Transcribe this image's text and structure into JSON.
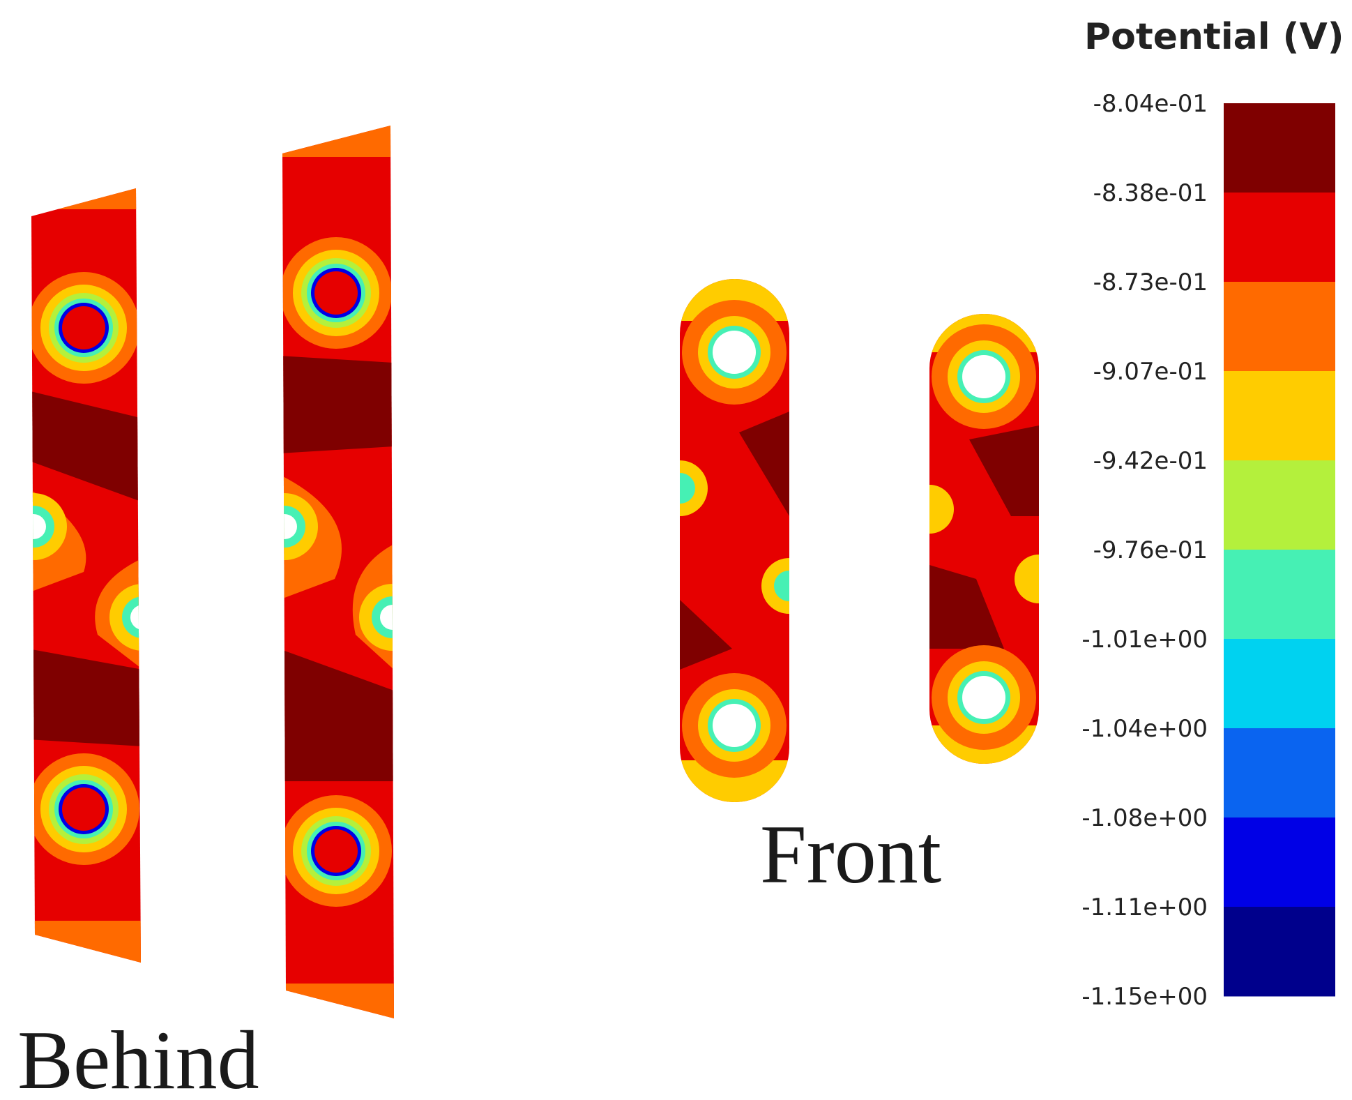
{
  "legend": {
    "title": "Potential (V)",
    "tick_labels": [
      "-8.04e-01",
      "-8.38e-01",
      "-8.73e-01",
      "-9.07e-01",
      "-9.42e-01",
      "-9.76e-01",
      "-1.01e+00",
      "-1.04e+00",
      "-1.08e+00",
      "-1.11e+00",
      "-1.15e+00"
    ],
    "colors": [
      "#7f0000",
      "#e60000",
      "#ff6a00",
      "#ffcc00",
      "#b4f03c",
      "#46f0b4",
      "#00d2f0",
      "#0a64f0",
      "#0000e6",
      "#00008c"
    ]
  },
  "labels": {
    "behind": "Behind",
    "front": "Front"
  }
}
